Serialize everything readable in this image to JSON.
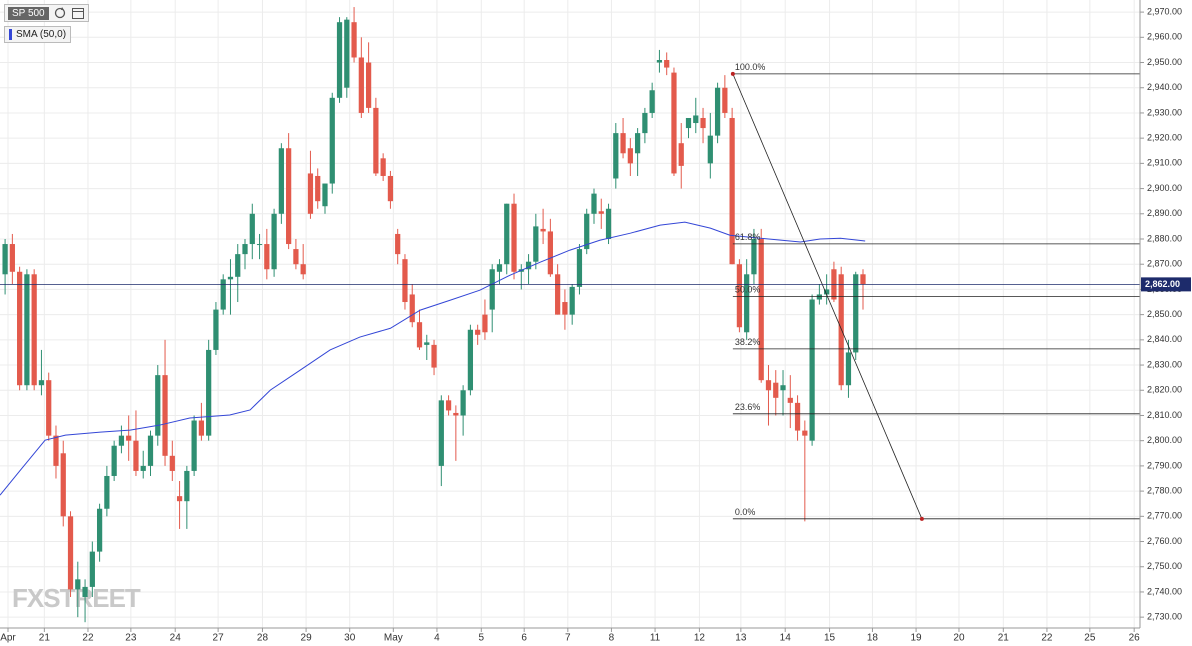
{
  "chart_data": {
    "type": "candlestick",
    "title": "SP 500",
    "watermark": "FXSTREET",
    "series": [
      {
        "name": "SP 500",
        "up_color": "#2f8f72",
        "down_color": "#e35a4c",
        "values": [
          [
            2866,
            2880,
            2858,
            2878
          ],
          [
            2878,
            2882,
            2862,
            2867
          ],
          [
            2867,
            2869,
            2820,
            2822
          ],
          [
            2822,
            2868,
            2820,
            2866
          ],
          [
            2866,
            2868,
            2820,
            2822
          ],
          [
            2822,
            2836,
            2818,
            2824
          ],
          [
            2824,
            2827,
            2800,
            2802
          ],
          [
            2802,
            2806,
            2785,
            2790
          ],
          [
            2795,
            2800,
            2766,
            2770
          ],
          [
            2770,
            2772,
            2738,
            2741
          ],
          [
            2741,
            2752,
            2730,
            2745
          ],
          [
            2738,
            2745,
            2728,
            2742
          ],
          [
            2742,
            2760,
            2738,
            2756
          ],
          [
            2756,
            2775,
            2752,
            2773
          ],
          [
            2773,
            2790,
            2770,
            2786
          ],
          [
            2786,
            2800,
            2784,
            2798
          ],
          [
            2798,
            2806,
            2795,
            2802
          ],
          [
            2802,
            2810,
            2792,
            2800
          ],
          [
            2800,
            2812,
            2786,
            2788
          ],
          [
            2788,
            2796,
            2785,
            2790
          ],
          [
            2790,
            2804,
            2786,
            2802
          ],
          [
            2802,
            2830,
            2798,
            2826
          ],
          [
            2826,
            2840,
            2790,
            2794
          ],
          [
            2794,
            2800,
            2784,
            2788
          ],
          [
            2778,
            2784,
            2765,
            2776
          ],
          [
            2776,
            2790,
            2765,
            2788
          ],
          [
            2788,
            2810,
            2786,
            2808
          ],
          [
            2808,
            2815,
            2800,
            2802
          ],
          [
            2802,
            2840,
            2800,
            2836
          ],
          [
            2836,
            2855,
            2834,
            2852
          ],
          [
            2852,
            2866,
            2850,
            2864
          ],
          [
            2864,
            2872,
            2850,
            2865
          ],
          [
            2865,
            2878,
            2855,
            2874
          ],
          [
            2874,
            2880,
            2868,
            2878
          ],
          [
            2878,
            2894,
            2872,
            2890
          ],
          [
            2878,
            2882,
            2872,
            2878
          ],
          [
            2878,
            2884,
            2864,
            2868
          ],
          [
            2868,
            2892,
            2865,
            2890
          ],
          [
            2890,
            2918,
            2886,
            2916
          ],
          [
            2916,
            2922,
            2876,
            2878
          ],
          [
            2876,
            2880,
            2868,
            2870
          ],
          [
            2870,
            2878,
            2864,
            2866
          ],
          [
            2906,
            2915,
            2888,
            2890
          ],
          [
            2905,
            2908,
            2892,
            2895
          ],
          [
            2893,
            2902,
            2890,
            2902
          ],
          [
            2902,
            2938,
            2898,
            2936
          ],
          [
            2936,
            2968,
            2934,
            2966
          ],
          [
            2940,
            2968,
            2936,
            2967
          ],
          [
            2966,
            2972,
            2950,
            2952
          ],
          [
            2952,
            2960,
            2928,
            2930
          ],
          [
            2950,
            2958,
            2930,
            2932
          ],
          [
            2932,
            2936,
            2905,
            2906
          ],
          [
            2912,
            2914,
            2903,
            2905
          ],
          [
            2905,
            2907,
            2892,
            2895
          ],
          [
            2882,
            2884,
            2870,
            2874
          ],
          [
            2872,
            2874,
            2852,
            2855
          ],
          [
            2858,
            2862,
            2845,
            2847
          ],
          [
            2847,
            2852,
            2836,
            2837
          ],
          [
            2838,
            2842,
            2832,
            2839
          ],
          [
            2838,
            2840,
            2826,
            2829
          ],
          [
            2790,
            2818,
            2782,
            2816
          ],
          [
            2816,
            2818,
            2810,
            2812
          ],
          [
            2811,
            2814,
            2792,
            2810
          ],
          [
            2810,
            2822,
            2802,
            2820
          ],
          [
            2820,
            2846,
            2818,
            2844
          ],
          [
            2844,
            2846,
            2838,
            2842
          ],
          [
            2850,
            2856,
            2840,
            2843
          ],
          [
            2852,
            2870,
            2843,
            2868
          ],
          [
            2867,
            2872,
            2862,
            2870
          ],
          [
            2870,
            2894,
            2866,
            2894
          ],
          [
            2894,
            2898,
            2864,
            2867
          ],
          [
            2867,
            2870,
            2860,
            2868
          ],
          [
            2868,
            2874,
            2862,
            2871
          ],
          [
            2871,
            2890,
            2868,
            2885
          ],
          [
            2884,
            2892,
            2878,
            2883
          ],
          [
            2883,
            2888,
            2865,
            2866
          ],
          [
            2866,
            2870,
            2850,
            2850
          ],
          [
            2855,
            2860,
            2844,
            2850
          ],
          [
            2850,
            2862,
            2846,
            2861
          ],
          [
            2861,
            2878,
            2858,
            2876
          ],
          [
            2876,
            2892,
            2874,
            2890
          ],
          [
            2890,
            2900,
            2886,
            2898
          ],
          [
            2891,
            2896,
            2884,
            2890
          ],
          [
            2880,
            2894,
            2878,
            2892
          ],
          [
            2904,
            2926,
            2900,
            2922
          ],
          [
            2922,
            2928,
            2912,
            2914
          ],
          [
            2916,
            2920,
            2905,
            2910
          ],
          [
            2914,
            2924,
            2905,
            2922
          ],
          [
            2922,
            2932,
            2918,
            2930
          ],
          [
            2930,
            2942,
            2928,
            2939
          ],
          [
            2950,
            2955,
            2946,
            2951
          ],
          [
            2951,
            2954,
            2945,
            2948
          ],
          [
            2946,
            2948,
            2905,
            2906
          ],
          [
            2918,
            2926,
            2900,
            2909
          ],
          [
            2924,
            2928,
            2920,
            2928
          ],
          [
            2926,
            2936,
            2922,
            2929
          ],
          [
            2928,
            2932,
            2918,
            2924
          ],
          [
            2910,
            2930,
            2904,
            2921
          ],
          [
            2921,
            2942,
            2918,
            2940
          ],
          [
            2940,
            2945,
            2928,
            2930
          ],
          [
            2928,
            2932,
            2870,
            2870
          ],
          [
            2870,
            2872,
            2843,
            2845
          ],
          [
            2843,
            2872,
            2840,
            2866
          ],
          [
            2866,
            2884,
            2862,
            2880
          ],
          [
            2880,
            2884,
            2823,
            2824
          ],
          [
            2824,
            2830,
            2806,
            2820
          ],
          [
            2823,
            2828,
            2810,
            2817
          ],
          [
            2820,
            2828,
            2810,
            2822
          ],
          [
            2817,
            2826,
            2805,
            2815
          ],
          [
            2815,
            2818,
            2800,
            2804
          ],
          [
            2804,
            2808,
            2768,
            2802
          ],
          [
            2800,
            2858,
            2798,
            2856
          ],
          [
            2856,
            2862,
            2854,
            2858
          ],
          [
            2858,
            2866,
            2854,
            2860
          ],
          [
            2868,
            2871,
            2855,
            2856
          ],
          [
            2866,
            2869,
            2820,
            2822
          ],
          [
            2822,
            2840,
            2817,
            2835
          ],
          [
            2835,
            2867,
            2832,
            2866
          ],
          [
            2866,
            2868,
            2852,
            2862
          ]
        ]
      }
    ],
    "sma": {
      "name": "SMA (50,0)",
      "color": "#3346d6",
      "x": [
        -0.7,
        2.1,
        5.5,
        8.3,
        13.1,
        17.2,
        21.3,
        25.4,
        30.9,
        33.7,
        36.5,
        40.6,
        44.7,
        48.8,
        53.0,
        57.1,
        61.2,
        65.3,
        69.5,
        73.6,
        77.7,
        81.8,
        86.0,
        90.1,
        93.5,
        97.0,
        99.7,
        103.9,
        109.4,
        112.1,
        114.9,
        118.3
      ],
      "values": [
        2778.4,
        2788.3,
        2800.2,
        2802.2,
        2803.4,
        2804.2,
        2806.2,
        2809.0,
        2810.2,
        2812.2,
        2820.1,
        2828.0,
        2836.0,
        2841.1,
        2844.6,
        2851.8,
        2855.7,
        2859.7,
        2865.7,
        2870.8,
        2875.6,
        2879.5,
        2882.3,
        2885.5,
        2886.7,
        2884.3,
        2881.5,
        2880.3,
        2878.8,
        2880.0,
        2880.3,
        2879.2
      ]
    },
    "last_price": {
      "value": 2862,
      "label": "2,862.00"
    },
    "fib": {
      "from": {
        "x": 100.1,
        "value": 2945.5
      },
      "to": {
        "x": 126.1,
        "value": 2769
      },
      "levels": [
        {
          "value": 100,
          "label": "100.0%"
        },
        {
          "value": 61.8,
          "label": "61.8%"
        },
        {
          "value": 50,
          "label": "50.0%"
        },
        {
          "value": 38.2,
          "label": "38.2%"
        },
        {
          "value": 23.6,
          "label": "23.6%"
        },
        {
          "value": 0,
          "label": "0.0%"
        }
      ]
    },
    "xlim": [
      -0.7,
      156.1
    ],
    "xticks": [
      {
        "value": 0.4,
        "label": "Apr"
      },
      {
        "value": 5.4,
        "label": "21"
      },
      {
        "value": 11.4,
        "label": "22"
      },
      {
        "value": 17.3,
        "label": "23"
      },
      {
        "value": 23.4,
        "label": "24"
      },
      {
        "value": 29.3,
        "label": "27"
      },
      {
        "value": 35.4,
        "label": "28"
      },
      {
        "value": 41.4,
        "label": "29"
      },
      {
        "value": 47.4,
        "label": "30"
      },
      {
        "value": 53.4,
        "label": "May"
      },
      {
        "value": 59.4,
        "label": "4"
      },
      {
        "value": 65.5,
        "label": "5"
      },
      {
        "value": 71.4,
        "label": "6"
      },
      {
        "value": 77.4,
        "label": "7"
      },
      {
        "value": 83.4,
        "label": "8"
      },
      {
        "value": 89.4,
        "label": "11"
      },
      {
        "value": 95.5,
        "label": "12"
      },
      {
        "value": 101.2,
        "label": "13"
      },
      {
        "value": 107.3,
        "label": "14"
      },
      {
        "value": 113.4,
        "label": "15"
      },
      {
        "value": 119.3,
        "label": "18"
      },
      {
        "value": 125.3,
        "label": "19"
      },
      {
        "value": 131.2,
        "label": "20"
      },
      {
        "value": 137.3,
        "label": "21"
      },
      {
        "value": 143.3,
        "label": "22"
      },
      {
        "value": 149.2,
        "label": "25"
      },
      {
        "value": 155.3,
        "label": "26"
      }
    ],
    "ylim": [
      2725.7,
      2974.8
    ],
    "yticks": [
      {
        "value": 2730,
        "label": "2,730.00"
      },
      {
        "value": 2740,
        "label": "2,740.00"
      },
      {
        "value": 2750,
        "label": "2,750.00"
      },
      {
        "value": 2760,
        "label": "2,760.00"
      },
      {
        "value": 2770,
        "label": "2,770.00"
      },
      {
        "value": 2780,
        "label": "2,780.00"
      },
      {
        "value": 2790,
        "label": "2,790.00"
      },
      {
        "value": 2800,
        "label": "2,800.00"
      },
      {
        "value": 2810,
        "label": "2,810.00"
      },
      {
        "value": 2820,
        "label": "2,820.00"
      },
      {
        "value": 2830,
        "label": "2,830.00"
      },
      {
        "value": 2840,
        "label": "2,840.00"
      },
      {
        "value": 2850,
        "label": "2,850.00"
      },
      {
        "value": 2860,
        "label": "2,860.00"
      },
      {
        "value": 2870,
        "label": "2,870.00"
      },
      {
        "value": 2880,
        "label": "2,880.00"
      },
      {
        "value": 2890,
        "label": "2,890.00"
      },
      {
        "value": 2900,
        "label": "2,900.00"
      },
      {
        "value": 2910,
        "label": "2,910.00"
      },
      {
        "value": 2920,
        "label": "2,920.00"
      },
      {
        "value": 2930,
        "label": "2,930.00"
      },
      {
        "value": 2940,
        "label": "2,940.00"
      },
      {
        "value": 2950,
        "label": "2,950.00"
      },
      {
        "value": 2960,
        "label": "2,960.00"
      },
      {
        "value": 2970,
        "label": "2,970.00"
      }
    ],
    "grid": true
  }
}
